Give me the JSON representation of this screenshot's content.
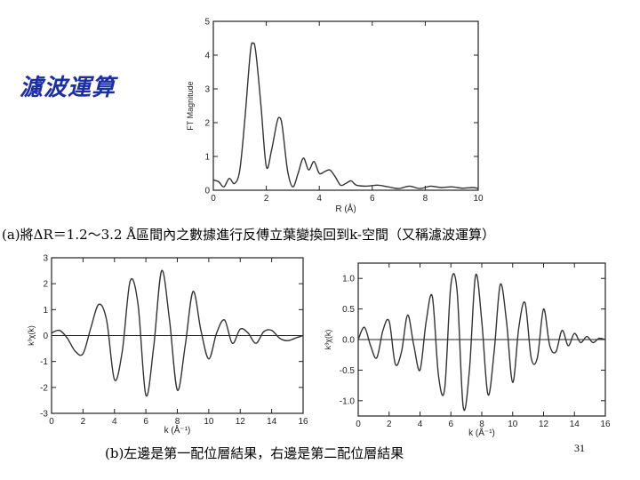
{
  "slide": {
    "title": "濾波運算",
    "caption_a": "(a)將ΔR＝1.2～3.2 Å區間內之數據進行反傅立葉變換回到k-空間（又稱濾波運算）",
    "caption_b": "(b)左邊是第一配位層結果，右邊是第二配位層結果",
    "page_number": "31"
  },
  "chart_data": [
    {
      "id": "ft",
      "type": "line",
      "xlabel": "R (Å)",
      "ylabel": "FT Magnitude",
      "xlim": [
        0,
        10
      ],
      "ylim": [
        0,
        5
      ],
      "xticks": [
        "0",
        "2",
        "4",
        "6",
        "8",
        "10"
      ],
      "yticks": [
        "0",
        "1",
        "2",
        "3",
        "4",
        "5"
      ],
      "grid": false,
      "series": [
        {
          "x": [
            0,
            0.2,
            0.4,
            0.6,
            0.8,
            1.0,
            1.2,
            1.4,
            1.5,
            1.6,
            1.8,
            2.0,
            2.2,
            2.4,
            2.5,
            2.6,
            2.8,
            3.0,
            3.2,
            3.4,
            3.6,
            3.8,
            4.0,
            4.2,
            4.4,
            4.6,
            4.8,
            5.0,
            5.2,
            5.4,
            5.8,
            6.2,
            6.6,
            7.0,
            7.4,
            7.8,
            8.2,
            8.6,
            9.0,
            9.4,
            9.8,
            10.0
          ],
          "y": [
            0.3,
            0.25,
            0.1,
            0.35,
            0.2,
            0.6,
            2.2,
            4.1,
            4.35,
            4.1,
            2.5,
            0.7,
            1.2,
            2.0,
            2.15,
            1.9,
            0.6,
            0.1,
            0.5,
            0.95,
            0.6,
            0.85,
            0.5,
            0.55,
            0.6,
            0.4,
            0.15,
            0.2,
            0.28,
            0.15,
            0.12,
            0.15,
            0.1,
            0.05,
            0.12,
            0.05,
            0.12,
            0.08,
            0.1,
            0.06,
            0.08,
            0.05
          ]
        }
      ]
    },
    {
      "id": "shell1",
      "type": "line",
      "xlabel": "k (Å⁻¹)",
      "ylabel": "k³χ(k)",
      "xlim": [
        0,
        16
      ],
      "ylim": [
        -3,
        3
      ],
      "xticks": [
        "0",
        "2",
        "4",
        "6",
        "8",
        "10",
        "12",
        "14",
        "16"
      ],
      "yticks": [
        "-3",
        "-2",
        "-1",
        "0",
        "1",
        "2",
        "3"
      ],
      "grid": false,
      "baseline": 0,
      "series": [
        {
          "x": [
            0,
            0.5,
            1.0,
            1.5,
            2.0,
            2.5,
            3.0,
            3.5,
            4.0,
            4.5,
            5.0,
            5.5,
            6.0,
            6.5,
            7.0,
            7.5,
            8.0,
            8.5,
            9.0,
            9.5,
            10.0,
            10.5,
            11.0,
            11.5,
            12.0,
            12.5,
            13.0,
            13.5,
            14.0,
            14.5,
            15.0,
            15.5,
            16.0
          ],
          "y": [
            0.1,
            0.2,
            -0.1,
            -0.6,
            -0.7,
            0.3,
            1.2,
            0.6,
            -1.7,
            -0.6,
            2.1,
            1.2,
            -2.3,
            -0.4,
            2.5,
            0.6,
            -2.1,
            -0.4,
            1.7,
            0.2,
            -0.9,
            0.1,
            0.6,
            -0.3,
            0.25,
            0.1,
            -0.3,
            0.15,
            0.2,
            -0.1,
            -0.2,
            -0.1,
            0.0
          ]
        }
      ]
    },
    {
      "id": "shell2",
      "type": "line",
      "xlabel": "k (Å⁻¹)",
      "ylabel": "k³χ(k)",
      "xlim": [
        0,
        16
      ],
      "ylim": [
        -1.25,
        1.25
      ],
      "xticks": [
        "0",
        "2",
        "4",
        "6",
        "8",
        "10",
        "12",
        "14",
        "16"
      ],
      "yticks": [
        "-1.0",
        "-0.5",
        "0.0",
        "0.5",
        "1.0"
      ],
      "grid": false,
      "baseline": 0,
      "series": [
        {
          "x": [
            0,
            0.4,
            0.8,
            1.2,
            1.6,
            2.0,
            2.4,
            2.8,
            3.2,
            3.6,
            4.0,
            4.4,
            4.8,
            5.2,
            5.6,
            6.0,
            6.4,
            6.8,
            7.2,
            7.6,
            8.0,
            8.4,
            8.8,
            9.2,
            9.6,
            10.0,
            10.4,
            10.8,
            11.2,
            11.6,
            12.0,
            12.4,
            12.8,
            13.2,
            13.6,
            14.0,
            14.4,
            14.8,
            15.2,
            15.6,
            16.0
          ],
          "y": [
            0.0,
            0.2,
            -0.1,
            -0.3,
            0.15,
            0.3,
            -0.4,
            -0.2,
            0.4,
            -0.1,
            -0.5,
            0.3,
            0.7,
            -0.6,
            -0.8,
            0.9,
            0.8,
            -1.1,
            -0.5,
            1.05,
            0.3,
            -0.9,
            -0.2,
            0.9,
            0.3,
            -0.7,
            0.2,
            0.6,
            -0.3,
            -0.3,
            0.5,
            -0.1,
            -0.2,
            0.15,
            -0.1,
            0.1,
            -0.05,
            0.05,
            -0.05,
            0.02,
            0.0
          ]
        }
      ]
    }
  ]
}
